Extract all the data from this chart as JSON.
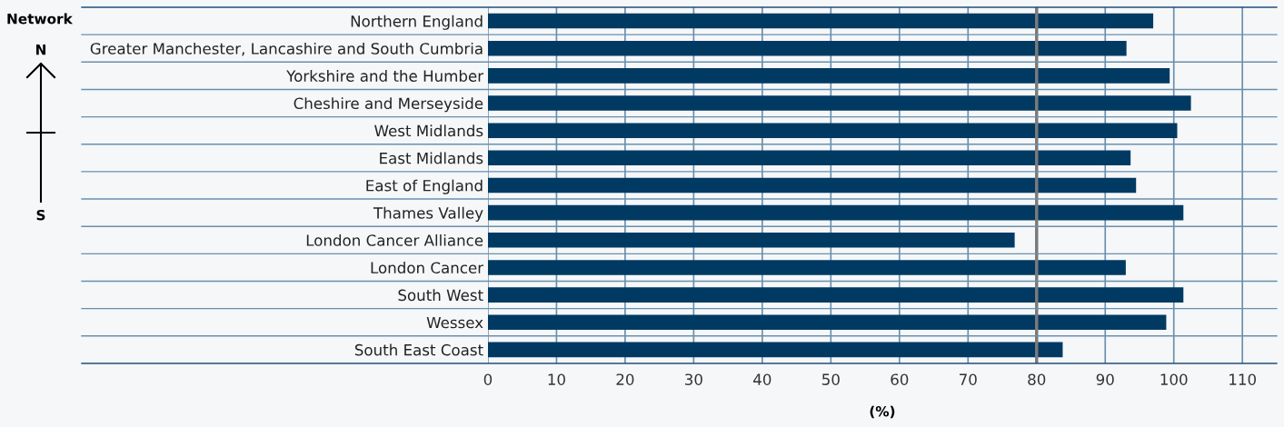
{
  "chart_data": {
    "type": "bar",
    "orientation": "horizontal",
    "ylabel": "Network",
    "xlabel": "(%)",
    "categories": [
      "Northern England",
      "Greater Manchester, Lancashire and South Cumbria",
      "Yorkshire and the Humber",
      "Cheshire and Merseyside",
      "West Midlands",
      "East Midlands",
      "East of England",
      "Thames Valley",
      "London Cancer Alliance",
      "London Cancer",
      "South West",
      "Wessex",
      "South East Coast"
    ],
    "values": [
      97.0,
      93.1,
      99.4,
      102.5,
      100.5,
      93.7,
      94.5,
      101.4,
      76.8,
      93.0,
      101.4,
      98.9,
      83.8
    ],
    "color": "#003a63",
    "xlim": [
      0,
      115
    ],
    "xticks": [
      0,
      10,
      20,
      30,
      40,
      50,
      60,
      70,
      80,
      90,
      100,
      110
    ],
    "grid": "x",
    "ref_lines": [
      {
        "axis": "x",
        "value": 80,
        "color": "#7a7a7a"
      }
    ],
    "annotations": [
      "N",
      "S"
    ]
  }
}
